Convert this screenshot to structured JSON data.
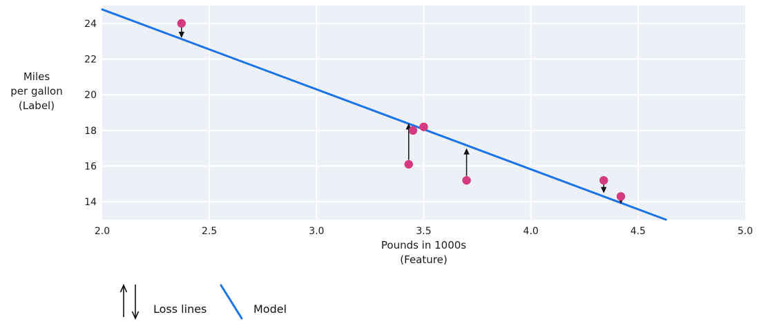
{
  "figure": {
    "y_axis_label": "Miles\nper gallon\n(Label)",
    "x_axis_label": "Pounds in 1000s\n(Feature)"
  },
  "legend": {
    "loss_label": "Loss lines",
    "model_label": "Model"
  },
  "chart_data": {
    "type": "scatter",
    "title": "",
    "xlabel": "Pounds in 1000s (Feature)",
    "ylabel": "Miles per gallon (Label)",
    "xlim": [
      2.0,
      5.0
    ],
    "ylim": [
      13.0,
      25.0
    ],
    "grid": true,
    "x_ticks": [
      {
        "value": 2.0,
        "label": "2.0"
      },
      {
        "value": 2.5,
        "label": "2.5"
      },
      {
        "value": 3.0,
        "label": "3.0"
      },
      {
        "value": 3.5,
        "label": "3.5"
      },
      {
        "value": 4.0,
        "label": "4.0"
      },
      {
        "value": 4.5,
        "label": "4.5"
      },
      {
        "value": 5.0,
        "label": "5.0"
      }
    ],
    "y_ticks": [
      {
        "value": 14,
        "label": "14"
      },
      {
        "value": 16,
        "label": "16"
      },
      {
        "value": 18,
        "label": "18"
      },
      {
        "value": 20,
        "label": "20"
      },
      {
        "value": 22,
        "label": "22"
      },
      {
        "value": 24,
        "label": "24"
      }
    ],
    "points": [
      {
        "x": 2.37,
        "y": 24.0
      },
      {
        "x": 3.45,
        "y": 18.0
      },
      {
        "x": 3.5,
        "y": 18.2
      },
      {
        "x": 3.43,
        "y": 16.1
      },
      {
        "x": 3.7,
        "y": 15.2
      },
      {
        "x": 4.34,
        "y": 15.2
      },
      {
        "x": 4.42,
        "y": 14.3
      }
    ],
    "model_line": {
      "x1": 2.0,
      "y1": 24.78,
      "x2": 4.63,
      "y2": 13.0
    },
    "loss_arrows": [
      {
        "x": 2.37,
        "from": 23.8,
        "to": 23.18,
        "direction": "down"
      },
      {
        "x": 3.43,
        "from": 16.35,
        "to": 18.4,
        "direction": "up"
      },
      {
        "x": 3.7,
        "from": 15.45,
        "to": 17.0,
        "direction": "up"
      },
      {
        "x": 4.34,
        "from": 15.0,
        "to": 14.48,
        "direction": "down"
      },
      {
        "x": 4.42,
        "from": 14.08,
        "to": 13.88,
        "direction": "down"
      }
    ],
    "colors": {
      "point": "#d5397f",
      "model": "#1a73e8",
      "arrow": "#111111",
      "plot_bg": "#edf0f7",
      "grid": "#ffffff",
      "tick_text": "#1a1a1a"
    }
  }
}
